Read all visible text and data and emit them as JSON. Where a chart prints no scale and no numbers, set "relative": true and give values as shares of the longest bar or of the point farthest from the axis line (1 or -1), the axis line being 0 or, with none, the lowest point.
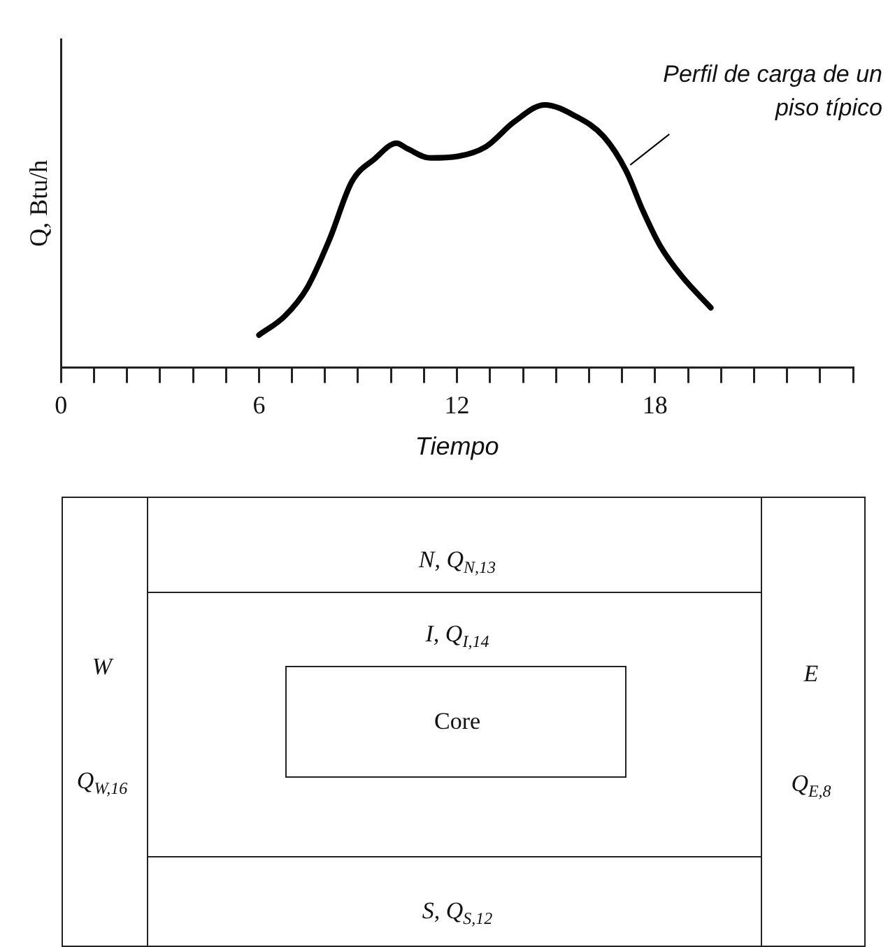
{
  "chart_data": [
    {
      "type": "line",
      "relative": true,
      "xlabel": "Tiempo",
      "ylabel": "Q, Btu/h",
      "color": "#000000",
      "marker": "none",
      "line_style": "solid",
      "grid": false,
      "legend": false,
      "x": [
        6.0,
        6.78,
        7.46,
        8.14,
        8.81,
        9.49,
        10.17,
        10.5,
        11.19,
        12.03,
        12.88,
        13.73,
        14.66,
        15.59,
        16.44,
        17.12,
        17.63,
        18.14,
        18.81,
        19.69
      ],
      "values": [
        0.124,
        0.196,
        0.304,
        0.489,
        0.707,
        0.793,
        0.854,
        0.833,
        0.798,
        0.804,
        0.841,
        0.935,
        1.0,
        0.957,
        0.88,
        0.75,
        0.598,
        0.467,
        0.348,
        0.228
      ],
      "xlim": [
        0,
        24
      ],
      "xticks": [
        0,
        {
          "value": 1,
          "label": null
        },
        {
          "value": 2,
          "label": null
        },
        {
          "value": 3,
          "label": null
        },
        {
          "value": 4,
          "label": null
        },
        {
          "value": 5,
          "label": null
        },
        6,
        {
          "value": 7,
          "label": null
        },
        {
          "value": 8,
          "label": null
        },
        {
          "value": 9,
          "label": null
        },
        {
          "value": 10,
          "label": null
        },
        {
          "value": 11,
          "label": null
        },
        12,
        {
          "value": 13,
          "label": null
        },
        {
          "value": 14,
          "label": null
        },
        {
          "value": 15,
          "label": null
        },
        {
          "value": 16,
          "label": null
        },
        {
          "value": 17,
          "label": null
        },
        18,
        {
          "value": 19,
          "label": null
        },
        {
          "value": 20,
          "label": null
        },
        {
          "value": 21,
          "label": null
        },
        {
          "value": 22,
          "label": null
        },
        {
          "value": 23,
          "label": null
        },
        {
          "value": 24,
          "label": null
        }
      ],
      "annotations": [
        {
          "text": "Perfil de carga de un piso típico",
          "x": 17.12,
          "y": 0.75
        }
      ]
    },
    {
      "type": "other",
      "annotations": [
        "N, Q$_{N,13}$",
        "I, Q$_{I,14}$",
        "Core",
        "W",
        "Q$_{W,16}$",
        "E",
        "Q$_{E,8}$",
        "S, Q$_{S,12}$"
      ]
    }
  ]
}
